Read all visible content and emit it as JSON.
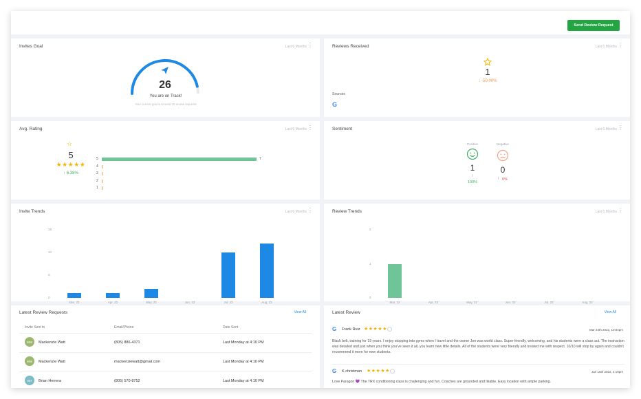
{
  "topbar": {
    "send_label": "Send Review Request"
  },
  "invites_goal": {
    "title": "Invites Goal",
    "range": "Last 6 Months",
    "value": "26",
    "status": "You are on Track!",
    "subtext": "Your current goal is to send 20 review requests",
    "gauge_fraction": 0.93,
    "accent": "#1e88e5"
  },
  "reviews_received": {
    "title": "Reviews Received",
    "range": "Last 6 Months",
    "value": "1",
    "change": "↓ -50.00%",
    "sources_label": "Sources",
    "source_icon": "google-icon"
  },
  "avg_rating": {
    "title": "Avg. Rating",
    "range": "Last 6 Months",
    "value": "5",
    "stars": "★★★★★",
    "change": "↑ 6.38%",
    "bars": [
      {
        "label": "5",
        "count": "7",
        "fraction": 1.0
      },
      {
        "label": "4",
        "count": "",
        "fraction": 0
      },
      {
        "label": "3",
        "count": "",
        "fraction": 0
      },
      {
        "label": "2",
        "count": "",
        "fraction": 0
      },
      {
        "label": "1",
        "count": "",
        "fraction": 0
      }
    ],
    "bar_color": "#6fc597"
  },
  "sentiment": {
    "title": "Sentiment",
    "range": "Last 6 Months",
    "positive_label": "Positive",
    "positive_value": "1",
    "positive_change": "100%",
    "negative_label": "Negative",
    "negative_value": "0",
    "negative_change": "0%"
  },
  "invite_trends": {
    "title": "Invite Trends",
    "range": "Last 6 Months",
    "yticks": [
      "15",
      "10",
      "5",
      "0"
    ],
    "chart_data": {
      "type": "bar",
      "categories": [
        "Mar, 22",
        "Apr, 22",
        "May, 22",
        "Jun, 22",
        "Jul, 22",
        "Aug, 22"
      ],
      "values": [
        1,
        1,
        2,
        0,
        10,
        12
      ],
      "ylim": [
        0,
        15
      ],
      "color": "#1e88e5"
    }
  },
  "review_trends": {
    "title": "Review Trends",
    "range": "Last 6 Months",
    "yticks": [
      "2",
      "1",
      "0"
    ],
    "chart_data": {
      "type": "bar",
      "categories": [
        "Mar, 22",
        "Apr, 22",
        "May, 22",
        "Jun, 22",
        "Jul, 22",
        "Aug, 22"
      ],
      "values": [
        1,
        0,
        0,
        0,
        0,
        0
      ],
      "ylim": [
        0,
        2
      ],
      "color": "#6fc597"
    }
  },
  "latest_requests": {
    "title": "Latest Review Requests",
    "view_all": "View All",
    "headers": [
      "Invite Sent to",
      "Email/Phone",
      "Date Sent"
    ],
    "rows": [
      {
        "initials": "MW",
        "name": "Mackenzie Watt",
        "contact": "(805) 886-4371",
        "date": "Last Monday at 4:10 PM"
      },
      {
        "initials": "MW",
        "name": "Mackenzie Watt",
        "contact": "mackenziewatt@gmail.com",
        "date": "Last Monday at 4:10 PM"
      },
      {
        "initials": "BH",
        "name": "Brian Herrera",
        "contact": "(805) 570-8752",
        "date": "Last Monday at 4:10 PM"
      }
    ]
  },
  "latest_review": {
    "title": "Latest Review",
    "view_all": "View All",
    "reviews": [
      {
        "name": "Frank Ruiz",
        "stars": "★★★★★",
        "date": "Mar 24th 2022, 10:04pm",
        "text": "Black belt, training for 19 years. I enjoy stopping into gyms when I travel and the owner Jon was world class. Super friendly, welcoming, and his students were a class act. The instruction was detailed and just when you think you've seen it all, you learn new little details. All of the students were very friendly and treated me with respect. 10/10 will stop by again and couldn't recommend it more for new students."
      },
      {
        "name": "K christman",
        "stars": "★★★★★",
        "date": "Jan 16th 2022, 4:19pm",
        "text": "Love Paragon 💜 The TRX conditioning class is challenging and fun. Coaches are grounded and likable. Easy location with ample parking."
      }
    ]
  }
}
